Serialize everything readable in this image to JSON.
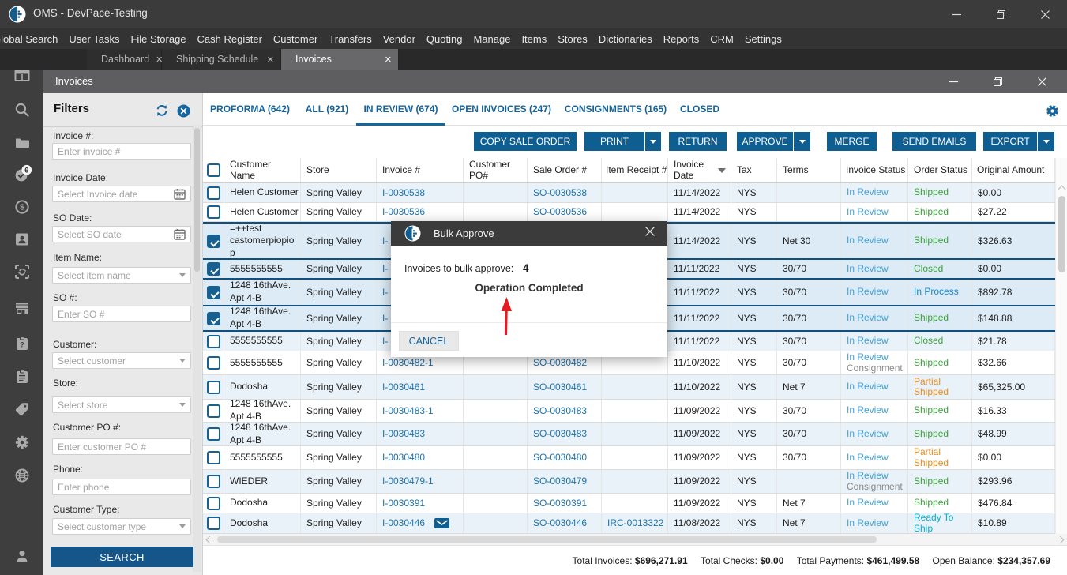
{
  "colors": {
    "accent_blue": "#0f5e91",
    "link_blue": "#1e73ae",
    "status_in_review": "#41a0da",
    "status_green": "#3da23d",
    "status_orange": "#e78c1e",
    "status_cyan": "#04aed8",
    "status_gray": "#8a8a8a",
    "selected_row_border": "#11507e",
    "titlebar": "#3b3b3b",
    "red_arrow": "#e31b23"
  },
  "titlebar": {
    "title": "OMS - DevPace-Testing",
    "icon": "app-logo"
  },
  "menu": {
    "items": [
      "Global Search",
      "User Tasks",
      "File Storage",
      "Cash Register",
      "Customer",
      "Transfers",
      "Vendor",
      "Quoting",
      "Manage",
      "Items",
      "Stores",
      "Dictionaries",
      "Reports",
      "CRM",
      "Settings"
    ]
  },
  "workspace_tabs": [
    {
      "label": "Dashboard",
      "active": false
    },
    {
      "label": "Shipping Schedule",
      "active": false
    },
    {
      "label": "Invoices",
      "active": true
    }
  ],
  "inner_window": {
    "title": "Invoices"
  },
  "sidebar": {
    "icons": [
      "dashboard-icon",
      "search-icon",
      "folder-icon",
      "tasks-icon",
      "money-icon",
      "contact-icon",
      "scan-icon",
      "store-icon",
      "item-help-icon",
      "clipboard-icon",
      "tag-icon",
      "gear-icon",
      "globe-icon",
      "user-icon"
    ],
    "tasks_badge": "6"
  },
  "filters": {
    "title": "Filters",
    "fields": [
      {
        "label": "Invoice #:",
        "placeholder": "Enter invoice #",
        "type": "text"
      },
      {
        "label": "Invoice Date:",
        "placeholder": "Select Invoice date",
        "type": "date"
      },
      {
        "label": "SO Date:",
        "placeholder": "Select SO date",
        "type": "date"
      },
      {
        "label": "Item Name:",
        "placeholder": "Select item name",
        "type": "select"
      },
      {
        "label": "SO #:",
        "placeholder": "Enter SO #",
        "type": "text"
      },
      {
        "label": "Customer:",
        "placeholder": "Select customer",
        "type": "select"
      },
      {
        "label": "Store:",
        "placeholder": "Select store",
        "type": "select"
      },
      {
        "label": "Customer PO #:",
        "placeholder": "Enter customer PO #",
        "type": "text"
      },
      {
        "label": "Phone:",
        "placeholder": "Enter phone",
        "type": "text"
      },
      {
        "label": "Customer Type:",
        "placeholder": "Select customer type",
        "type": "select"
      }
    ],
    "search_label": "SEARCH"
  },
  "invoice_tabs": [
    {
      "label": "PROFORMA (642)",
      "active": false
    },
    {
      "label": "ALL (921)",
      "active": false
    },
    {
      "label": "IN REVIEW (674)",
      "active": true
    },
    {
      "label": "OPEN INVOICES (247)",
      "active": false
    },
    {
      "label": "CONSIGNMENTS (165)",
      "active": false
    },
    {
      "label": "CLOSED",
      "active": false
    }
  ],
  "toolbar": {
    "buttons": [
      {
        "label": "COPY SALE ORDER",
        "split": false
      },
      {
        "label": "PRINT",
        "split": true
      },
      {
        "label": "RETURN",
        "split": false
      },
      {
        "label": "APPROVE",
        "split": true
      },
      {
        "label": "MERGE",
        "split": false
      },
      {
        "label": "SEND EMAILS",
        "split": false
      },
      {
        "label": "EXPORT",
        "split": true
      }
    ]
  },
  "table": {
    "columns": [
      "",
      "Customer Name",
      "Store",
      "Invoice #",
      "Customer PO#",
      "Sale Order #",
      "Item Receipt #",
      "Invoice Date",
      "Tax",
      "Terms",
      "Invoice Status",
      "Order Status",
      "Original Amount"
    ],
    "rows": [
      {
        "checked": false,
        "name": "Helen Customer",
        "store": "Spring Valley",
        "invoice": "I-0030538",
        "mail": false,
        "po": "",
        "so": "SO-0030538",
        "irc": "",
        "date": "11/14/2022",
        "tax": "NYS",
        "terms": "",
        "inv_status": "In Review",
        "inv_status2": "",
        "order_status": "Shipped",
        "order_color": "green",
        "amount": "$0.00"
      },
      {
        "checked": false,
        "name": "Helen Customer",
        "store": "Spring Valley",
        "invoice": "I-0030536",
        "mail": false,
        "po": "",
        "so": "SO-0030536",
        "irc": "",
        "date": "11/14/2022",
        "tax": "NYS",
        "terms": "",
        "inv_status": "In Review",
        "inv_status2": "",
        "order_status": "Shipped",
        "order_color": "green",
        "amount": "$27.22"
      },
      {
        "checked": true,
        "name": "=++test castomerpiopiop",
        "store": "Spring Valley",
        "invoice": "I-",
        "mail": false,
        "po": "",
        "so": "",
        "irc": "",
        "date": "11/14/2022",
        "tax": "NYS",
        "terms": "Net 30",
        "inv_status": "In Review",
        "inv_status2": "",
        "order_status": "Shipped",
        "order_color": "green",
        "amount": "$326.63"
      },
      {
        "checked": true,
        "name": "5555555555",
        "store": "Spring Valley",
        "invoice": "I-",
        "mail": false,
        "po": "",
        "so": "",
        "irc": "",
        "date": "11/11/2022",
        "tax": "NYS",
        "terms": "30/70",
        "inv_status": "In Review",
        "inv_status2": "",
        "order_status": "Closed",
        "order_color": "green",
        "amount": "$0.00"
      },
      {
        "checked": true,
        "name": "1248 16thAve. Apt 4-B",
        "store": "Spring Valley",
        "invoice": "I-",
        "mail": false,
        "po": "",
        "so": "",
        "irc": "",
        "date": "11/11/2022",
        "tax": "NYS",
        "terms": "30/70",
        "inv_status": "In Review",
        "inv_status2": "",
        "order_status": "In Process",
        "order_color": "blue",
        "amount": "$892.78"
      },
      {
        "checked": true,
        "name": "1248 16thAve. Apt 4-B",
        "store": "Spring Valley",
        "invoice": "I-",
        "mail": false,
        "po": "",
        "so": "",
        "irc": "",
        "date": "11/11/2022",
        "tax": "NYS",
        "terms": "30/70",
        "inv_status": "In Review",
        "inv_status2": "",
        "order_status": "Shipped",
        "order_color": "green",
        "amount": "$148.88"
      },
      {
        "checked": false,
        "name": "5555555555",
        "store": "Spring Valley",
        "invoice": "I-",
        "mail": false,
        "po": "",
        "so": "",
        "irc": "",
        "date": "11/11/2022",
        "tax": "NYS",
        "terms": "30/70",
        "inv_status": "In Review",
        "inv_status2": "",
        "order_status": "Closed",
        "order_color": "green",
        "amount": "$21.78"
      },
      {
        "checked": false,
        "name": "5555555555",
        "store": "Spring Valley",
        "invoice": "I-0030482-1",
        "mail": false,
        "po": "",
        "so": "SO-0030482",
        "irc": "",
        "date": "11/10/2022",
        "tax": "NYS",
        "terms": "30/70",
        "inv_status": "In Review",
        "inv_status2": "Consignment",
        "order_status": "Shipped",
        "order_color": "green",
        "amount": "$32.66"
      },
      {
        "checked": false,
        "name": "Dodosha",
        "store": "Spring Valley",
        "invoice": "I-0030461",
        "mail": false,
        "po": "",
        "so": "SO-0030461",
        "irc": "",
        "date": "11/10/2022",
        "tax": "NYS",
        "terms": "Net 7",
        "inv_status": "In Review",
        "inv_status2": "",
        "order_status": "Partial Shipped",
        "order_color": "orange",
        "amount": "$65,325.00"
      },
      {
        "checked": false,
        "name": "1248 16thAve. Apt 4-B",
        "store": "Spring Valley",
        "invoice": "I-0030483-1",
        "mail": false,
        "po": "",
        "so": "SO-0030483",
        "irc": "",
        "date": "11/09/2022",
        "tax": "NYS",
        "terms": "30/70",
        "inv_status": "In Review",
        "inv_status2": "",
        "order_status": "Shipped",
        "order_color": "green",
        "amount": "$16.33"
      },
      {
        "checked": false,
        "name": "1248 16thAve. Apt 4-B",
        "store": "Spring Valley",
        "invoice": "I-0030483",
        "mail": false,
        "po": "",
        "so": "SO-0030483",
        "irc": "",
        "date": "11/09/2022",
        "tax": "NYS",
        "terms": "30/70",
        "inv_status": "In Review",
        "inv_status2": "",
        "order_status": "Shipped",
        "order_color": "green",
        "amount": "$48.99"
      },
      {
        "checked": false,
        "name": "5555555555",
        "store": "Spring Valley",
        "invoice": "I-0030480",
        "mail": false,
        "po": "",
        "so": "SO-0030480",
        "irc": "",
        "date": "11/09/2022",
        "tax": "NYS",
        "terms": "30/70",
        "inv_status": "In Review",
        "inv_status2": "",
        "order_status": "Partial Shipped",
        "order_color": "orange",
        "amount": "$0.00"
      },
      {
        "checked": false,
        "name": "WIEDER",
        "store": "Spring Valley",
        "invoice": "I-0030479-1",
        "mail": false,
        "po": "",
        "so": "SO-0030479",
        "irc": "",
        "date": "11/09/2022",
        "tax": "NYS",
        "terms": "",
        "inv_status": "In Review",
        "inv_status2": "Consignment",
        "order_status": "Shipped",
        "order_color": "green",
        "amount": "$293.96"
      },
      {
        "checked": false,
        "name": "Dodosha",
        "store": "Spring Valley",
        "invoice": "I-0030391",
        "mail": false,
        "po": "",
        "so": "SO-0030391",
        "irc": "",
        "date": "11/09/2022",
        "tax": "NYS",
        "terms": "Net 7",
        "inv_status": "In Review",
        "inv_status2": "",
        "order_status": "Shipped",
        "order_color": "green",
        "amount": "$476.84"
      },
      {
        "checked": false,
        "name": "Dodosha",
        "store": "Spring Valley",
        "invoice": "I-0030446",
        "mail": true,
        "po": "",
        "so": "SO-0030446",
        "irc": "IRC-0013322",
        "date": "11/08/2022",
        "tax": "NYS",
        "terms": "Net 7",
        "inv_status": "In Review",
        "inv_status2": "",
        "order_status": "Ready To Ship",
        "order_color": "cyan",
        "amount": "$10.89"
      }
    ]
  },
  "modal": {
    "title": "Bulk Approve",
    "label": "Invoices to bulk approve:",
    "count": "4",
    "message": "Operation Completed",
    "cancel_label": "CANCEL"
  },
  "totals": [
    {
      "label": "Total Invoices:",
      "value": "$696,271.91"
    },
    {
      "label": "Total Checks:",
      "value": "$0.00"
    },
    {
      "label": "Total Payments:",
      "value": "$461,499.58"
    },
    {
      "label": "Open Balance:",
      "value": "$234,357.69"
    }
  ]
}
